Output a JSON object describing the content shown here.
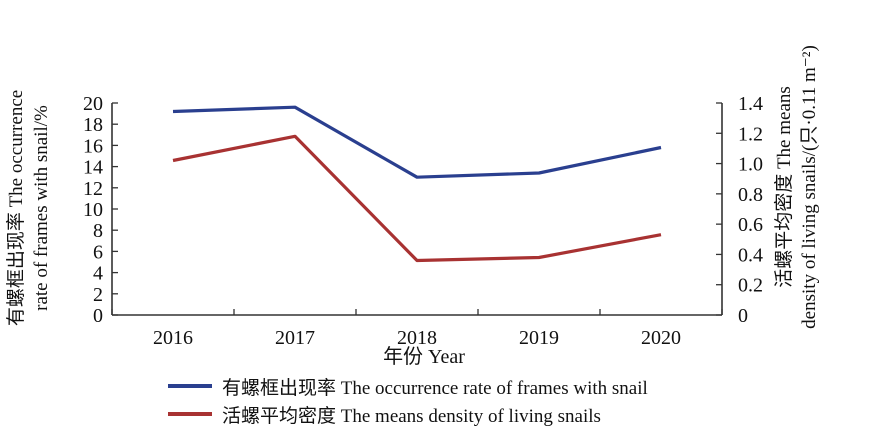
{
  "chart_data": {
    "type": "line",
    "categories": [
      "2016",
      "2017",
      "2018",
      "2019",
      "2020"
    ],
    "xlabel": "年份 Year",
    "ylabel_left": "有螺框出现率 The occurrence rate of frames with snail/%",
    "ylabel_left_lines": [
      "有螺框出现率 The occurrence",
      "rate of frames with snail/%"
    ],
    "ylabel_right": "活螺平均密度 The means density of living snails/(只·0.11 m⁻²)",
    "ylabel_right_lines": [
      "活螺平均密度 The means",
      "density of living snails/(只·0.11 m⁻²)"
    ],
    "ylim_left": [
      0,
      20
    ],
    "ylim_right": [
      0,
      1.4
    ],
    "yticks_left": [
      "0",
      "2",
      "4",
      "6",
      "8",
      "10",
      "12",
      "14",
      "16",
      "18",
      "20"
    ],
    "yticks_right": [
      "0",
      "0.2",
      "0.4",
      "0.6",
      "0.8",
      "1.0",
      "1.2",
      "1.4"
    ],
    "series": [
      {
        "name": "有螺框出现率 The occurrence rate of frames with snail",
        "axis": "left",
        "color": "#2a3f8f",
        "values": [
          19.2,
          19.6,
          13.0,
          13.4,
          15.8
        ]
      },
      {
        "name": "活螺平均密度 The means density of living snails",
        "axis": "right",
        "color": "#a83232",
        "values": [
          1.02,
          1.18,
          0.36,
          0.38,
          0.53
        ]
      }
    ],
    "grid": false,
    "legend_position": "bottom"
  }
}
